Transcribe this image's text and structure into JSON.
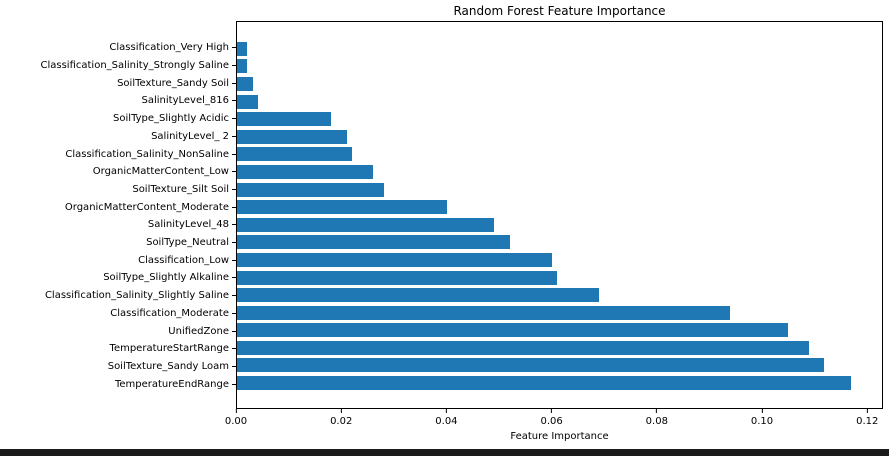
{
  "window": {
    "background": "#ffffff",
    "bottom_strip_color": "#1b1b1b"
  },
  "chart_data": {
    "type": "bar",
    "orientation": "horizontal",
    "title": "Random Forest Feature Importance",
    "xlabel": "Feature Importance",
    "ylabel": "",
    "categories": [
      "Classification_Very High",
      "Classification_Salinity_Strongly Saline",
      "SoilTexture_Sandy Soil",
      "SalinityLevel_816",
      "SoilType_Slightly Acidic",
      "SalinityLevel_ 2",
      "Classification_Salinity_NonSaline",
      "OrganicMatterContent_Low",
      "SoilTexture_Silt Soil",
      "OrganicMatterContent_Moderate",
      "SalinityLevel_48",
      "SoilType_Neutral",
      "Classification_Low",
      "SoilType_Slightly Alkaline",
      "Classification_Salinity_Slightly Saline",
      "Classification_Moderate",
      "UnifiedZone",
      "TemperatureStartRange",
      "SoilTexture_Sandy Loam",
      "TemperatureEndRange"
    ],
    "values": [
      0.002,
      0.002,
      0.003,
      0.004,
      0.018,
      0.021,
      0.022,
      0.026,
      0.028,
      0.04,
      0.049,
      0.052,
      0.06,
      0.061,
      0.069,
      0.094,
      0.105,
      0.109,
      0.112,
      0.117
    ],
    "xlim": [
      0,
      0.123
    ],
    "xticks": [
      0,
      0.02,
      0.04,
      0.06,
      0.08,
      0.1,
      0.12
    ],
    "xtick_labels": [
      "0.00",
      "0.02",
      "0.04",
      "0.06",
      "0.08",
      "0.10",
      "0.12"
    ],
    "bar_color": "#1f77b4",
    "grid": false,
    "legend": false
  }
}
